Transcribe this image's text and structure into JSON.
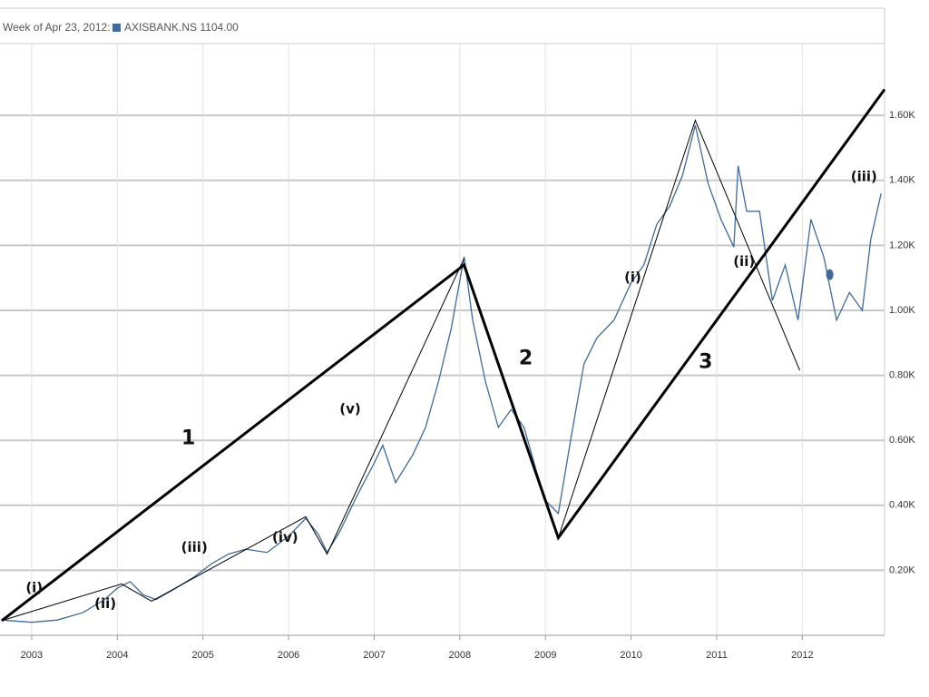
{
  "chart_data": {
    "type": "line",
    "title": "Week of Apr 23, 2012:",
    "x": [
      2002.65,
      2003.0,
      2003.3,
      2003.6,
      2003.85,
      2004.0,
      2004.15,
      2004.3,
      2004.45,
      2004.65,
      2004.9,
      2005.1,
      2005.3,
      2005.5,
      2005.75,
      2006.0,
      2006.2,
      2006.35,
      2006.45,
      2006.6,
      2006.8,
      2007.0,
      2007.1,
      2007.25,
      2007.45,
      2007.6,
      2007.75,
      2007.9,
      2008.05,
      2008.15,
      2008.3,
      2008.45,
      2008.6,
      2008.75,
      2008.9,
      2009.0,
      2009.15,
      2009.3,
      2009.45,
      2009.6,
      2009.8,
      2010.0,
      2010.15,
      2010.3,
      2010.45,
      2010.6,
      2010.75,
      2010.9,
      2011.05,
      2011.2,
      2011.25,
      2011.35,
      2011.5,
      2011.65,
      2011.8,
      2011.95,
      2012.1,
      2012.25,
      2012.4,
      2012.55,
      2012.7,
      2012.8,
      2012.92
    ],
    "series": [
      {
        "name": "AXISBANK.NS 1104.00",
        "color": "#3e6a9a",
        "values": [
          47,
          40,
          47,
          70,
          110,
          145,
          165,
          125,
          110,
          140,
          180,
          220,
          250,
          265,
          255,
          305,
          360,
          310,
          255,
          320,
          430,
          530,
          585,
          470,
          555,
          640,
          780,
          945,
          1165,
          970,
          780,
          640,
          695,
          640,
          500,
          415,
          375,
          610,
          835,
          915,
          970,
          1085,
          1140,
          1265,
          1320,
          1415,
          1570,
          1390,
          1280,
          1195,
          1445,
          1305,
          1305,
          1030,
          1140,
          970,
          1280,
          1165,
          970,
          1055,
          1000,
          1220,
          1360
        ]
      }
    ],
    "xlim": [
      2002.63,
      2012.96
    ],
    "ylim": [
      0,
      1810
    ],
    "xticks": [
      2003,
      2004,
      2005,
      2006,
      2007,
      2008,
      2009,
      2010,
      2011,
      2012
    ],
    "yticks": [
      {
        "value": 200,
        "label": "0.20K"
      },
      {
        "value": 400,
        "label": "0.40K"
      },
      {
        "value": 600,
        "label": "0.60K"
      },
      {
        "value": 800,
        "label": "0.80K"
      },
      {
        "value": 1000,
        "label": "1.00K"
      },
      {
        "value": 1200,
        "label": "1.20K"
      },
      {
        "value": 1400,
        "label": "1.40K"
      },
      {
        "value": 1600,
        "label": "1.60K"
      }
    ],
    "grid": true,
    "marker": {
      "x": 2012.32,
      "y": 1110
    },
    "waves": [
      {
        "style": "bold",
        "x": [
          2002.65,
          2008.05,
          2009.15,
          2012.96
        ],
        "y": [
          45,
          1140,
          300,
          1680
        ]
      },
      {
        "style": "thin",
        "x": [
          2002.65,
          2004.05,
          2004.4,
          2006.2,
          2006.45,
          2008.05
        ],
        "y": [
          45,
          158,
          105,
          365,
          250,
          1160
        ]
      },
      {
        "style": "thin",
        "x": [
          2009.15,
          2010.75,
          2011.97
        ],
        "y": [
          300,
          1585,
          815
        ]
      }
    ],
    "wave_labels": [
      {
        "text": "1",
        "x": 2004.83,
        "y": 605,
        "style": "bold"
      },
      {
        "text": "2",
        "x": 2008.77,
        "y": 850,
        "style": "bold"
      },
      {
        "text": "3",
        "x": 2010.87,
        "y": 840,
        "style": "bold"
      },
      {
        "text": "(i)",
        "x": 2003.03,
        "y": 145,
        "style": "thin"
      },
      {
        "text": "(ii)",
        "x": 2003.86,
        "y": 97,
        "style": "thin"
      },
      {
        "text": "(iii)",
        "x": 2004.9,
        "y": 270,
        "style": "thin"
      },
      {
        "text": "(iv)",
        "x": 2005.96,
        "y": 300,
        "style": "thin"
      },
      {
        "text": "(v)",
        "x": 2006.72,
        "y": 695,
        "style": "thin"
      },
      {
        "text": "(i)",
        "x": 2010.02,
        "y": 1100,
        "style": "thin"
      },
      {
        "text": "(ii)",
        "x": 2011.32,
        "y": 1150,
        "style": "thin"
      },
      {
        "text": "(iii)",
        "x": 2012.72,
        "y": 1410,
        "style": "thin"
      }
    ]
  }
}
